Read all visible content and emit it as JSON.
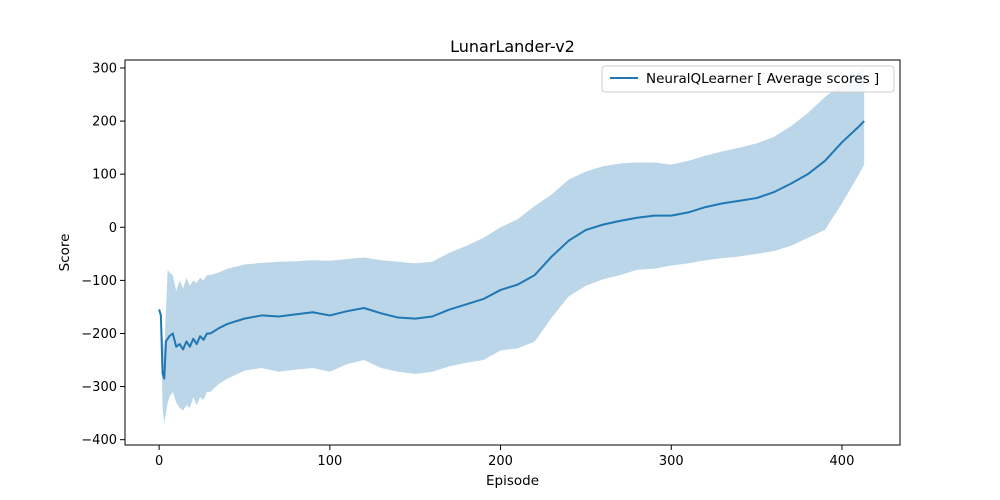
{
  "chart_data": {
    "type": "line",
    "title": "LunarLander-v2",
    "xlabel": "Episode",
    "ylabel": "Score",
    "xlim": [
      -20,
      434
    ],
    "ylim": [
      -410,
      315
    ],
    "x_ticks": [
      0,
      100,
      200,
      300,
      400
    ],
    "x_tick_labels": [
      "0",
      "100",
      "200",
      "300",
      "400"
    ],
    "y_ticks": [
      -400,
      -300,
      -200,
      -100,
      0,
      100,
      200,
      300
    ],
    "y_tick_labels": [
      "−400",
      "−300",
      "−200",
      "−100",
      "0",
      "100",
      "200",
      "300"
    ],
    "grid": false,
    "legend_position": "top-right",
    "colors": {
      "line": "#1f77b4",
      "band": "#1f77b4",
      "band_opacity": 0.3
    },
    "series": [
      {
        "name": "NeuralQLearner [ Average scores ]",
        "x": [
          0,
          1,
          2,
          3,
          4,
          5,
          6,
          8,
          10,
          12,
          14,
          16,
          18,
          20,
          22,
          24,
          26,
          28,
          30,
          35,
          40,
          50,
          60,
          70,
          80,
          90,
          100,
          110,
          120,
          130,
          140,
          150,
          160,
          170,
          180,
          190,
          200,
          210,
          220,
          230,
          240,
          250,
          260,
          270,
          280,
          290,
          300,
          310,
          320,
          330,
          340,
          350,
          360,
          370,
          380,
          390,
          400,
          410,
          413
        ],
        "y": [
          -155,
          -165,
          -275,
          -285,
          -215,
          -210,
          -205,
          -200,
          -225,
          -220,
          -230,
          -215,
          -225,
          -210,
          -220,
          -205,
          -212,
          -200,
          -200,
          -190,
          -182,
          -172,
          -166,
          -168,
          -164,
          -160,
          -166,
          -158,
          -152,
          -162,
          -170,
          -172,
          -168,
          -155,
          -145,
          -135,
          -118,
          -108,
          -90,
          -55,
          -25,
          -5,
          5,
          12,
          18,
          22,
          22,
          28,
          38,
          45,
          50,
          55,
          66,
          82,
          100,
          125,
          160,
          190,
          200
        ],
        "upper": [
          -150,
          -160,
          -200,
          -230,
          -155,
          -80,
          -85,
          -90,
          -120,
          -100,
          -115,
          -95,
          -110,
          -100,
          -105,
          -95,
          -100,
          -90,
          -90,
          -85,
          -78,
          -70,
          -67,
          -65,
          -64,
          -62,
          -63,
          -60,
          -57,
          -62,
          -65,
          -68,
          -65,
          -48,
          -35,
          -20,
          0,
          15,
          40,
          62,
          90,
          105,
          115,
          120,
          122,
          122,
          118,
          125,
          135,
          143,
          150,
          158,
          170,
          190,
          215,
          245,
          270,
          292,
          300
        ],
        "lower": [
          -160,
          -180,
          -340,
          -370,
          -350,
          -330,
          -320,
          -310,
          -330,
          -340,
          -345,
          -335,
          -340,
          -320,
          -335,
          -320,
          -325,
          -310,
          -310,
          -295,
          -285,
          -270,
          -265,
          -272,
          -268,
          -265,
          -272,
          -258,
          -250,
          -265,
          -272,
          -276,
          -272,
          -262,
          -255,
          -250,
          -232,
          -228,
          -215,
          -170,
          -130,
          -110,
          -98,
          -90,
          -80,
          -78,
          -72,
          -68,
          -62,
          -58,
          -55,
          -50,
          -45,
          -35,
          -20,
          -5,
          45,
          100,
          118
        ]
      }
    ]
  }
}
